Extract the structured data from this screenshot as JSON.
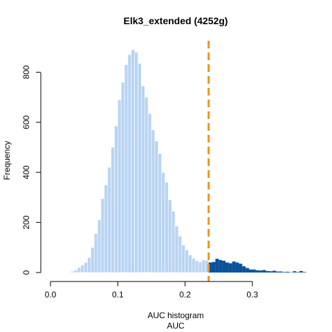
{
  "chart_data": {
    "type": "bar",
    "title": "Elk3_extended (4252g)",
    "xlabel": "AUC histogram",
    "xlabel_sub": "AUC",
    "ylabel": "Frequency",
    "xlim": [
      0,
      0.38
    ],
    "ylim": [
      0,
      900
    ],
    "x_ticks": [
      "0.0",
      "0.1",
      "0.2",
      "0.3"
    ],
    "x_tick_values": [
      0.0,
      0.1,
      0.2,
      0.3
    ],
    "y_ticks": [
      "0",
      "200",
      "400",
      "600",
      "800"
    ],
    "y_tick_values": [
      0,
      200,
      400,
      600,
      800
    ],
    "bin_width": 0.005,
    "bin_starts": [
      0.025,
      0.03,
      0.035,
      0.04,
      0.045,
      0.05,
      0.055,
      0.06,
      0.065,
      0.07,
      0.075,
      0.08,
      0.085,
      0.09,
      0.095,
      0.1,
      0.105,
      0.11,
      0.115,
      0.12,
      0.125,
      0.13,
      0.135,
      0.14,
      0.145,
      0.15,
      0.155,
      0.16,
      0.165,
      0.17,
      0.175,
      0.18,
      0.185,
      0.19,
      0.195,
      0.2,
      0.205,
      0.21,
      0.215,
      0.22,
      0.225,
      0.23,
      0.235,
      0.24,
      0.245,
      0.25,
      0.255,
      0.26,
      0.265,
      0.27,
      0.275,
      0.28,
      0.285,
      0.29,
      0.295,
      0.3,
      0.305,
      0.31,
      0.315,
      0.32,
      0.325,
      0.33,
      0.335,
      0.34,
      0.345,
      0.35,
      0.355,
      0.36,
      0.365,
      0.37,
      0.375
    ],
    "counts": [
      2,
      5,
      10,
      20,
      30,
      40,
      60,
      100,
      155,
      210,
      295,
      350,
      420,
      500,
      585,
      690,
      760,
      830,
      870,
      890,
      880,
      835,
      745,
      700,
      635,
      570,
      525,
      475,
      400,
      360,
      290,
      245,
      185,
      145,
      110,
      90,
      70,
      57,
      47,
      42,
      50,
      48,
      40,
      42,
      55,
      50,
      47,
      40,
      37,
      44,
      40,
      35,
      25,
      18,
      12,
      12,
      9,
      8,
      10,
      6,
      5,
      7,
      4,
      4,
      2,
      3,
      1,
      5,
      2,
      6,
      2
    ],
    "threshold": 0.235,
    "colors": {
      "below_threshold": "#b9d4f2",
      "above_threshold": "#08519c",
      "threshold_line": "#f0921e"
    }
  }
}
